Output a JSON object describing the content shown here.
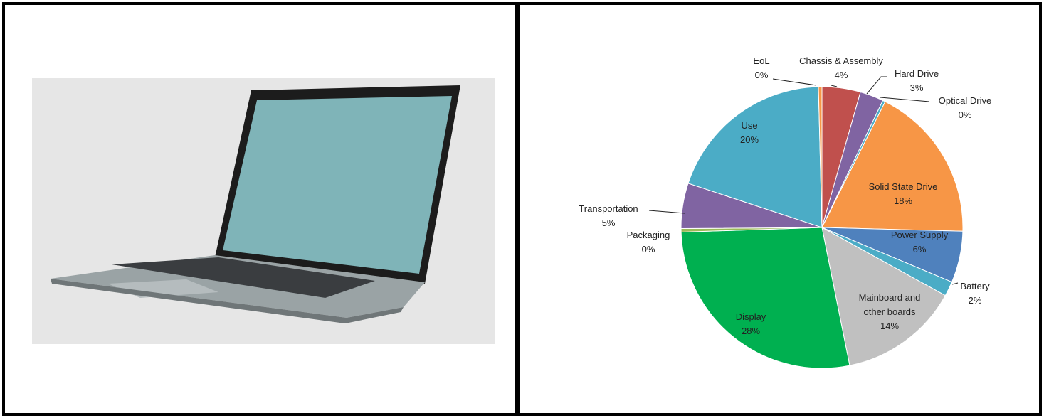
{
  "chart_data": {
    "type": "pie",
    "categories": [
      "Chassis & Assembly",
      "Hard Drive",
      "Optical Drive",
      "Solid State  Drive",
      "Power Supply",
      "Battery",
      "Mainboard and other boards",
      "Display",
      "Packaging",
      "Transportation",
      "Use",
      "EoL"
    ],
    "values": [
      4.4,
      2.7,
      0.3,
      18.0,
      5.9,
      1.7,
      13.8,
      27.6,
      0.4,
      5.2,
      19.5,
      0.4
    ],
    "value_labels": [
      "4%",
      "3%",
      "0%",
      "18%",
      "6%",
      "2%",
      "14%",
      "28%",
      "0%",
      "5%",
      "20%",
      "0%"
    ],
    "colors": [
      "#c0504d",
      "#8064a2",
      "#4bacc6",
      "#f79646",
      "#4f81bd",
      "#4bacc6",
      "#c0c0c0",
      "#00b050",
      "#9bbb59",
      "#8064a2",
      "#4bacc6",
      "#f79646"
    ]
  }
}
